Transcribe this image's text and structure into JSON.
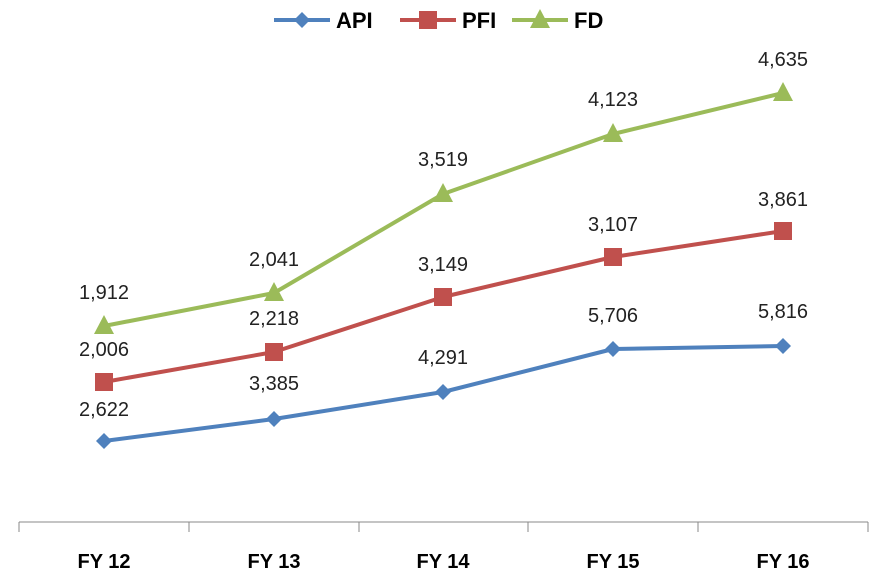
{
  "chart_data": {
    "type": "line",
    "title": "",
    "xlabel": "",
    "ylabel": "",
    "categories": [
      "FY 12",
      "FY 13",
      "FY 14",
      "FY 15",
      "FY 16"
    ],
    "legend_position": "top",
    "grid": false,
    "series": [
      {
        "name": "API",
        "color": "#4f81bd",
        "marker": "diamond",
        "values": [
          2622,
          3385,
          4291,
          5706,
          5816
        ],
        "labels": [
          "2,622",
          "3,385",
          "4,291",
          "5,706",
          "5,816"
        ]
      },
      {
        "name": "PFI",
        "color": "#c0504d",
        "marker": "square",
        "values": [
          2006,
          2218,
          3149,
          3107,
          3861
        ],
        "labels": [
          "2,006",
          "2,218",
          "3,149",
          "3,107",
          "3,861"
        ]
      },
      {
        "name": "FD",
        "color": "#9bbb59",
        "marker": "triangle",
        "values": [
          1912,
          2041,
          3519,
          4123,
          4635
        ],
        "labels": [
          "1,912",
          "2,041",
          "3,519",
          "4,123",
          "4,635"
        ]
      }
    ]
  }
}
